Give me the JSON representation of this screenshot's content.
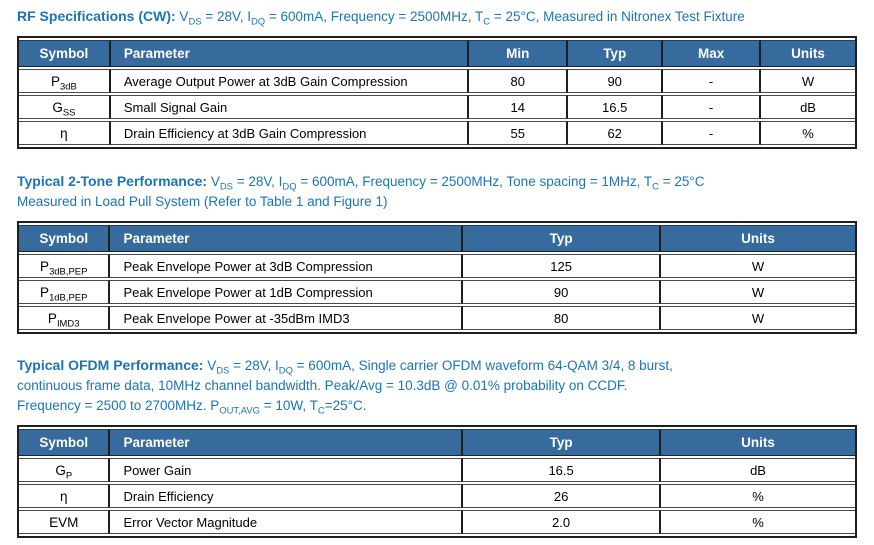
{
  "colors": {
    "header_bg": "#376A9D",
    "heading_text": "#1C74B6",
    "table_border": "#1f1f1f"
  },
  "sections": [
    {
      "heading": {
        "title": "RF Specifications (CW):",
        "rest": " V~DS~ = 28V, I~DQ~ = 600mA,  Frequency = 2500MHz, T~C~ = 25°C, Measured in Nitronex Test Fixture",
        "lines": []
      },
      "table": {
        "columns": [
          "Symbol",
          "Parameter",
          "Min",
          "Typ",
          "Max",
          "Units"
        ],
        "rows": [
          [
            "P~3dB~",
            "Average Output Power at 3dB Gain Compression",
            "80",
            "90",
            "-",
            "W"
          ],
          [
            "G~SS~",
            "Small Signal Gain",
            "14",
            "16.5",
            "-",
            "dB"
          ],
          [
            "η",
            "Drain Efficiency at 3dB Gain Compression",
            "55",
            "62",
            "-",
            "%"
          ]
        ]
      }
    },
    {
      "heading": {
        "title": "Typical 2-Tone Performance:",
        "rest": " V~DS~ = 28V, I~DQ~ = 600mA, Frequency = 2500MHz, Tone spacing = 1MHz, T~C~ = 25°C",
        "lines": [
          "Measured in Load Pull System (Refer to Table 1 and Figure 1)"
        ]
      },
      "table": {
        "columns": [
          "Symbol",
          "Parameter",
          "Typ",
          "Units"
        ],
        "rows": [
          [
            "P~3dB,PEP~",
            "Peak Envelope Power at 3dB Compression",
            "125",
            "W"
          ],
          [
            "P~1dB,PEP~",
            "Peak Envelope Power at 1dB Compression",
            "90",
            "W"
          ],
          [
            "P~IMD3~",
            "Peak Envelope Power at -35dBm IMD3",
            "80",
            "W"
          ]
        ]
      }
    },
    {
      "heading": {
        "title": "Typical OFDM Performance:",
        "rest": " V~DS~ = 28V, I~DQ~ = 600mA, Single carrier OFDM waveform 64-QAM 3/4, 8 burst,",
        "lines": [
          "continuous frame data, 10MHz channel bandwidth. Peak/Avg = 10.3dB @ 0.01% probability on CCDF.",
          "Frequency = 2500 to 2700MHz. P~OUT,AVG~ = 10W, T~C~=25°C."
        ]
      },
      "table": {
        "columns": [
          "Symbol",
          "Parameter",
          "Typ",
          "Units"
        ],
        "rows": [
          [
            "G~P~",
            "Power Gain",
            "16.5",
            "dB"
          ],
          [
            "η",
            "Drain Efficiency",
            "26",
            "%"
          ],
          [
            "EVM",
            "Error Vector Magnitude",
            "2.0",
            "%"
          ]
        ]
      }
    }
  ]
}
